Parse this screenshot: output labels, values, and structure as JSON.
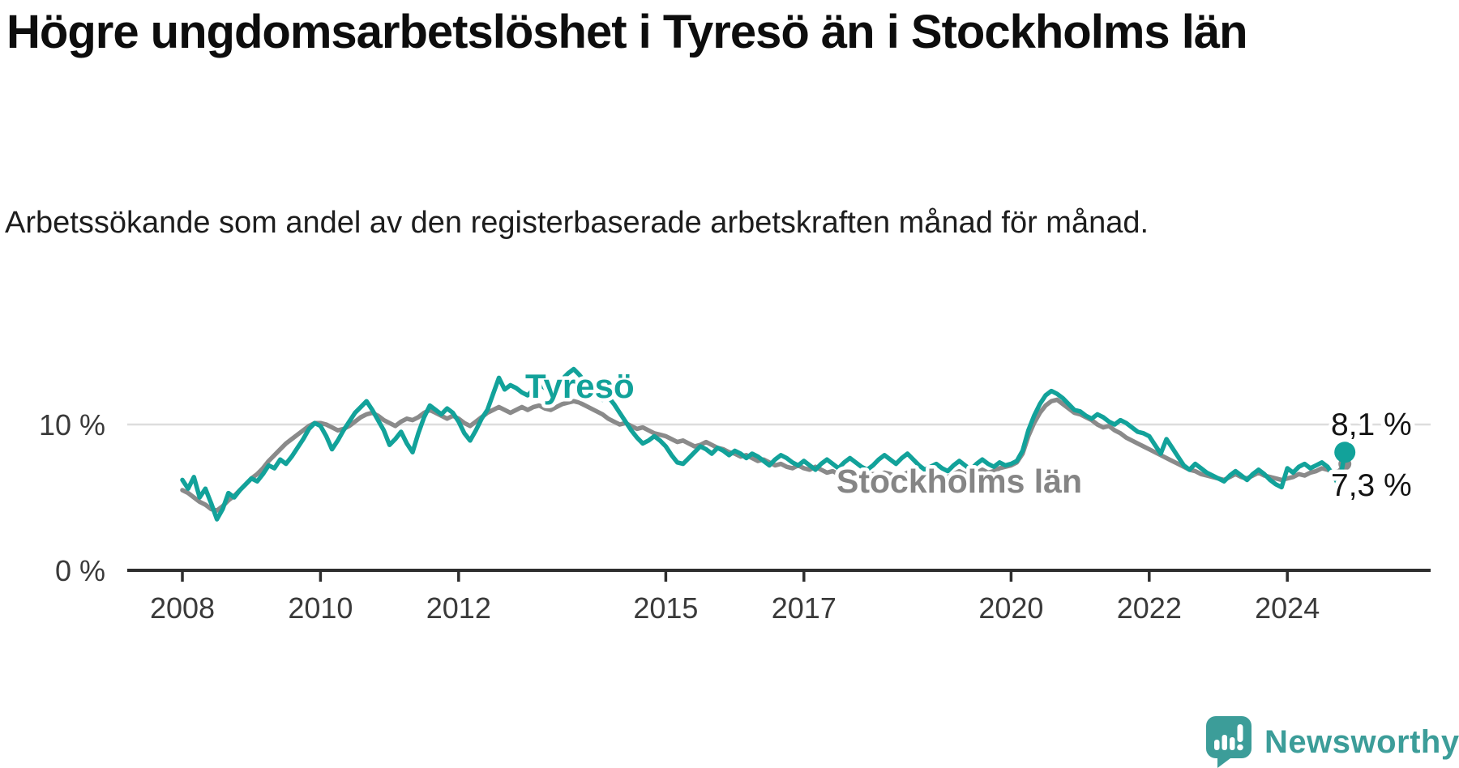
{
  "header": {
    "title": "Högre ungdomsarbetslöshet i Tyresö än i Stockholms län",
    "subtitle": "Arbetssökande som andel av den registerbaserade arbetskraften månad för månad."
  },
  "chart_data": {
    "type": "line",
    "x_unit": "month",
    "x_start": "2008-01",
    "x_end": "2024-11",
    "xlim_years": [
      2008,
      2025
    ],
    "ylim": [
      0,
      15
    ],
    "grid": {
      "horizontal_gridlines_at": [
        10
      ],
      "vertical": false
    },
    "legend_position": "inline-labels-on-chart",
    "x_ticks": [
      {
        "year": 2008,
        "label": "2008"
      },
      {
        "year": 2010,
        "label": "2010"
      },
      {
        "year": 2012,
        "label": "2012"
      },
      {
        "year": 2015,
        "label": "2015"
      },
      {
        "year": 2017,
        "label": "2017"
      },
      {
        "year": 2020,
        "label": "2020"
      },
      {
        "year": 2022,
        "label": "2022"
      },
      {
        "year": 2024,
        "label": "2024"
      }
    ],
    "y_ticks": [
      {
        "value": 0,
        "label": "0 %"
      },
      {
        "value": 10,
        "label": "10 %"
      }
    ],
    "series": [
      {
        "name": "Tyresö",
        "color": "#12a29a",
        "end_value": 8.1,
        "end_label": "8,1 %",
        "end_dot_radius": 13,
        "values": [
          6.2,
          5.6,
          6.4,
          5.0,
          5.6,
          4.6,
          3.5,
          4.2,
          5.3,
          5.0,
          5.5,
          5.9,
          6.3,
          6.1,
          6.6,
          7.2,
          7.0,
          7.6,
          7.3,
          7.8,
          8.4,
          9.0,
          9.7,
          10.1,
          9.9,
          9.2,
          8.3,
          8.9,
          9.6,
          10.2,
          10.8,
          11.2,
          11.6,
          11.0,
          10.3,
          9.6,
          8.6,
          9.0,
          9.5,
          8.7,
          8.1,
          9.4,
          10.5,
          11.3,
          11.0,
          10.7,
          11.1,
          10.8,
          10.2,
          9.4,
          8.9,
          9.6,
          10.4,
          11.0,
          12.1,
          13.2,
          12.4,
          12.7,
          12.5,
          12.2,
          12.0,
          12.4,
          12.8,
          12.5,
          12.2,
          12.6,
          13.1,
          13.5,
          13.8,
          13.4,
          12.9,
          12.5,
          12.1,
          11.7,
          11.9,
          11.4,
          10.8,
          10.2,
          9.6,
          9.1,
          8.7,
          8.9,
          9.2,
          8.9,
          8.5,
          7.9,
          7.4,
          7.3,
          7.7,
          8.1,
          8.5,
          8.3,
          8.0,
          8.4,
          8.2,
          7.9,
          8.2,
          8.0,
          7.7,
          8.0,
          7.8,
          7.5,
          7.2,
          7.6,
          7.9,
          7.7,
          7.4,
          7.2,
          7.5,
          7.2,
          6.9,
          7.3,
          7.6,
          7.3,
          7.0,
          7.4,
          7.7,
          7.4,
          7.1,
          6.9,
          7.2,
          7.6,
          7.9,
          7.6,
          7.3,
          7.7,
          8.0,
          7.6,
          7.2,
          6.9,
          7.1,
          7.3,
          7.0,
          6.8,
          7.2,
          7.5,
          7.2,
          6.9,
          7.3,
          7.6,
          7.3,
          7.1,
          7.4,
          7.2,
          7.3,
          7.5,
          8.2,
          9.6,
          10.6,
          11.4,
          12.0,
          12.3,
          12.1,
          11.8,
          11.4,
          11.0,
          10.9,
          10.6,
          10.4,
          10.7,
          10.5,
          10.2,
          10.0,
          10.3,
          10.1,
          9.8,
          9.5,
          9.4,
          9.2,
          8.6,
          8.0,
          9.0,
          8.4,
          7.8,
          7.2,
          6.9,
          7.3,
          7.0,
          6.7,
          6.5,
          6.3,
          6.1,
          6.5,
          6.8,
          6.5,
          6.2,
          6.6,
          6.9,
          6.6,
          6.2,
          5.9,
          5.7,
          7.0,
          6.7,
          7.1,
          7.3,
          7.0,
          7.2,
          7.4,
          7.1,
          6.5,
          5.8,
          8.1
        ]
      },
      {
        "name": "Stockholms län",
        "color": "#8a8a8a",
        "end_value": 7.3,
        "end_label": "7,3 %",
        "end_dot_radius": 8,
        "values": [
          5.5,
          5.3,
          5.0,
          4.7,
          4.5,
          4.2,
          4.1,
          4.4,
          4.8,
          5.1,
          5.5,
          5.9,
          6.3,
          6.6,
          7.0,
          7.5,
          7.9,
          8.3,
          8.7,
          9.0,
          9.3,
          9.6,
          9.9,
          10.1,
          10.1,
          10.0,
          9.8,
          9.6,
          9.7,
          9.9,
          10.2,
          10.5,
          10.7,
          10.8,
          10.6,
          10.3,
          10.1,
          9.9,
          10.2,
          10.4,
          10.3,
          10.5,
          10.8,
          11.0,
          10.8,
          10.6,
          10.4,
          10.6,
          10.4,
          10.1,
          9.9,
          10.2,
          10.5,
          10.8,
          11.0,
          11.2,
          11.0,
          10.8,
          11.0,
          11.2,
          11.0,
          11.2,
          11.3,
          11.1,
          11.0,
          11.2,
          11.4,
          11.5,
          11.6,
          11.5,
          11.3,
          11.1,
          10.9,
          10.7,
          10.4,
          10.2,
          10.0,
          10.1,
          9.9,
          9.7,
          9.8,
          9.6,
          9.4,
          9.3,
          9.2,
          9.0,
          8.8,
          8.9,
          8.7,
          8.5,
          8.6,
          8.8,
          8.6,
          8.4,
          8.3,
          8.1,
          8.0,
          7.8,
          7.9,
          7.7,
          7.5,
          7.6,
          7.4,
          7.2,
          7.3,
          7.1,
          7.0,
          7.2,
          7.0,
          6.9,
          7.1,
          6.9,
          6.7,
          6.8,
          6.6,
          6.5,
          6.7,
          6.5,
          6.4,
          6.5,
          6.6,
          6.5,
          6.7,
          6.6,
          6.4,
          6.5,
          6.7,
          6.6,
          6.4,
          6.3,
          6.4,
          6.6,
          6.5,
          6.4,
          6.6,
          6.8,
          6.6,
          6.5,
          6.7,
          6.9,
          6.7,
          6.8,
          7.0,
          7.1,
          7.2,
          7.4,
          8.0,
          9.2,
          10.1,
          10.8,
          11.3,
          11.6,
          11.7,
          11.4,
          11.1,
          10.8,
          10.7,
          10.5,
          10.3,
          10.0,
          9.8,
          9.9,
          9.6,
          9.4,
          9.1,
          8.9,
          8.7,
          8.5,
          8.3,
          8.1,
          7.9,
          7.7,
          7.5,
          7.3,
          7.1,
          6.9,
          6.8,
          6.6,
          6.5,
          6.4,
          6.3,
          6.2,
          6.4,
          6.6,
          6.4,
          6.3,
          6.5,
          6.7,
          6.5,
          6.4,
          6.3,
          6.2,
          6.3,
          6.4,
          6.6,
          6.5,
          6.7,
          6.8,
          7.0,
          6.9,
          6.7,
          6.8,
          7.3
        ]
      }
    ]
  },
  "branding": {
    "logo_text": "Newsworthy",
    "logo_color": "#3c9d99"
  }
}
